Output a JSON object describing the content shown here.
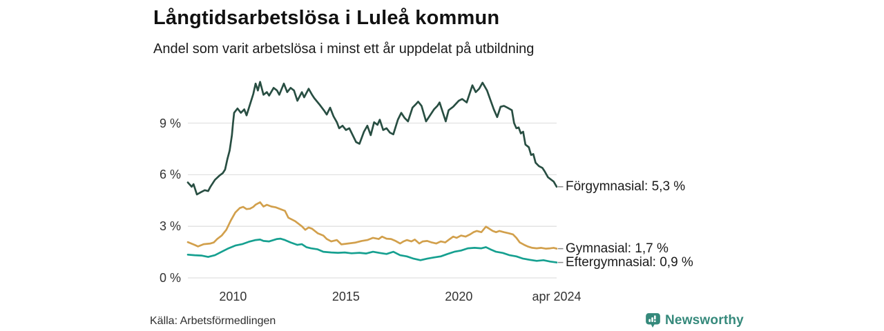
{
  "header": {
    "title": "Långtidsarbetslösa i Luleå kommun",
    "subtitle": "Andel som varit arbetslösa i minst ett år uppdelat på utbildning"
  },
  "chart_data": {
    "type": "line",
    "title": "Långtidsarbetslösa i Luleå kommun",
    "subtitle": "Andel som varit arbetslösa i minst ett år uppdelat på utbildning",
    "xlabel": "",
    "ylabel": "",
    "grid": true,
    "grid_color": "#e1e1e1",
    "legend_position": "end-of-line",
    "x_axis": {
      "range": [
        2008,
        2024.333
      ],
      "ticks": [
        {
          "x": 2010,
          "label": "2010"
        },
        {
          "x": 2015,
          "label": "2015"
        },
        {
          "x": 2020,
          "label": "2020"
        },
        {
          "x": 2024.333,
          "label": "apr 2024"
        }
      ]
    },
    "y_axis": {
      "range": [
        0,
        11.8
      ],
      "unit": "%",
      "ticks": [
        {
          "v": 0,
          "label": "0 %"
        },
        {
          "v": 3,
          "label": "3 %"
        },
        {
          "v": 6,
          "label": "6 %"
        },
        {
          "v": 9,
          "label": "9 %"
        }
      ]
    },
    "series": [
      {
        "name": "Förgymnasial",
        "color": "#284e42",
        "end_value": "5,3 %",
        "end_label": "Förgymnasial: 5,3 %",
        "points": [
          [
            2008.0,
            5.55
          ],
          [
            2008.17,
            5.3
          ],
          [
            2008.25,
            5.45
          ],
          [
            2008.4,
            4.85
          ],
          [
            2008.6,
            5.0
          ],
          [
            2008.75,
            5.1
          ],
          [
            2008.9,
            5.05
          ],
          [
            2009.0,
            5.3
          ],
          [
            2009.2,
            5.7
          ],
          [
            2009.4,
            5.95
          ],
          [
            2009.55,
            6.1
          ],
          [
            2009.65,
            6.3
          ],
          [
            2009.75,
            6.9
          ],
          [
            2009.85,
            7.4
          ],
          [
            2009.95,
            8.3
          ],
          [
            2010.0,
            9.0
          ],
          [
            2010.05,
            9.6
          ],
          [
            2010.2,
            9.85
          ],
          [
            2010.35,
            9.6
          ],
          [
            2010.5,
            9.8
          ],
          [
            2010.6,
            9.45
          ],
          [
            2010.9,
            10.7
          ],
          [
            2011.0,
            11.3
          ],
          [
            2011.1,
            10.9
          ],
          [
            2011.2,
            11.4
          ],
          [
            2011.35,
            10.65
          ],
          [
            2011.5,
            10.8
          ],
          [
            2011.6,
            10.6
          ],
          [
            2011.8,
            11.05
          ],
          [
            2011.95,
            10.9
          ],
          [
            2012.05,
            10.65
          ],
          [
            2012.25,
            11.3
          ],
          [
            2012.4,
            10.8
          ],
          [
            2012.55,
            11.05
          ],
          [
            2012.7,
            10.9
          ],
          [
            2012.85,
            10.3
          ],
          [
            2013.05,
            10.8
          ],
          [
            2013.15,
            10.5
          ],
          [
            2013.35,
            11.0
          ],
          [
            2013.5,
            10.65
          ],
          [
            2013.6,
            10.45
          ],
          [
            2013.85,
            10.05
          ],
          [
            2014.05,
            9.7
          ],
          [
            2014.15,
            9.5
          ],
          [
            2014.3,
            9.9
          ],
          [
            2014.45,
            9.4
          ],
          [
            2014.6,
            9.05
          ],
          [
            2014.7,
            8.7
          ],
          [
            2014.85,
            8.85
          ],
          [
            2015.0,
            8.6
          ],
          [
            2015.15,
            8.7
          ],
          [
            2015.3,
            8.3
          ],
          [
            2015.45,
            7.9
          ],
          [
            2015.6,
            7.8
          ],
          [
            2015.8,
            8.5
          ],
          [
            2015.95,
            8.85
          ],
          [
            2016.1,
            8.3
          ],
          [
            2016.25,
            9.05
          ],
          [
            2016.4,
            8.9
          ],
          [
            2016.5,
            9.2
          ],
          [
            2016.65,
            8.6
          ],
          [
            2016.8,
            8.7
          ],
          [
            2016.95,
            8.45
          ],
          [
            2017.1,
            8.35
          ],
          [
            2017.3,
            9.2
          ],
          [
            2017.45,
            9.6
          ],
          [
            2017.6,
            9.3
          ],
          [
            2017.75,
            9.1
          ],
          [
            2017.95,
            9.9
          ],
          [
            2018.1,
            10.1
          ],
          [
            2018.2,
            10.25
          ],
          [
            2018.35,
            10.0
          ],
          [
            2018.55,
            9.1
          ],
          [
            2018.7,
            9.4
          ],
          [
            2018.9,
            9.8
          ],
          [
            2019.05,
            10.0
          ],
          [
            2019.15,
            10.2
          ],
          [
            2019.42,
            9.1
          ],
          [
            2019.55,
            9.75
          ],
          [
            2019.75,
            9.95
          ],
          [
            2020.0,
            10.3
          ],
          [
            2020.15,
            10.4
          ],
          [
            2020.35,
            10.2
          ],
          [
            2020.6,
            11.2
          ],
          [
            2020.75,
            10.8
          ],
          [
            2020.9,
            11.0
          ],
          [
            2021.05,
            11.35
          ],
          [
            2021.25,
            10.9
          ],
          [
            2021.4,
            10.35
          ],
          [
            2021.55,
            9.8
          ],
          [
            2021.7,
            9.35
          ],
          [
            2021.85,
            9.95
          ],
          [
            2022.0,
            10.0
          ],
          [
            2022.15,
            9.9
          ],
          [
            2022.35,
            9.75
          ],
          [
            2022.45,
            9.0
          ],
          [
            2022.55,
            8.7
          ],
          [
            2022.65,
            8.75
          ],
          [
            2022.75,
            8.4
          ],
          [
            2022.85,
            8.5
          ],
          [
            2022.95,
            7.75
          ],
          [
            2023.1,
            7.6
          ],
          [
            2023.2,
            7.15
          ],
          [
            2023.3,
            7.2
          ],
          [
            2023.4,
            6.7
          ],
          [
            2023.55,
            6.5
          ],
          [
            2023.7,
            6.4
          ],
          [
            2023.8,
            6.2
          ],
          [
            2023.95,
            5.85
          ],
          [
            2024.1,
            5.7
          ],
          [
            2024.2,
            5.6
          ],
          [
            2024.333,
            5.3
          ]
        ]
      },
      {
        "name": "Gymnasial",
        "color": "#d2a04c",
        "end_value": "1,7 %",
        "end_label": "Gymnasial: 1,7 %",
        "points": [
          [
            2008.0,
            2.08
          ],
          [
            2008.3,
            1.92
          ],
          [
            2008.45,
            1.83
          ],
          [
            2008.7,
            1.96
          ],
          [
            2009.0,
            2.0
          ],
          [
            2009.15,
            2.06
          ],
          [
            2009.3,
            2.26
          ],
          [
            2009.5,
            2.46
          ],
          [
            2009.7,
            2.79
          ],
          [
            2009.9,
            3.33
          ],
          [
            2010.1,
            3.8
          ],
          [
            2010.3,
            4.06
          ],
          [
            2010.45,
            4.13
          ],
          [
            2010.6,
            4.0
          ],
          [
            2010.75,
            4.02
          ],
          [
            2010.9,
            4.13
          ],
          [
            2011.0,
            4.26
          ],
          [
            2011.2,
            4.4
          ],
          [
            2011.35,
            4.15
          ],
          [
            2011.5,
            4.25
          ],
          [
            2011.7,
            4.15
          ],
          [
            2011.9,
            4.1
          ],
          [
            2012.1,
            4.0
          ],
          [
            2012.3,
            3.9
          ],
          [
            2012.45,
            3.5
          ],
          [
            2012.75,
            3.3
          ],
          [
            2013.05,
            3.0
          ],
          [
            2013.2,
            2.8
          ],
          [
            2013.35,
            2.93
          ],
          [
            2013.5,
            2.86
          ],
          [
            2013.75,
            2.6
          ],
          [
            2014.0,
            2.46
          ],
          [
            2014.15,
            2.26
          ],
          [
            2014.35,
            2.12
          ],
          [
            2014.6,
            2.2
          ],
          [
            2014.8,
            1.95
          ],
          [
            2015.1,
            2.0
          ],
          [
            2015.4,
            2.05
          ],
          [
            2015.7,
            2.15
          ],
          [
            2015.95,
            2.2
          ],
          [
            2016.2,
            2.33
          ],
          [
            2016.45,
            2.26
          ],
          [
            2016.6,
            2.4
          ],
          [
            2016.8,
            2.28
          ],
          [
            2017.0,
            2.26
          ],
          [
            2017.2,
            2.15
          ],
          [
            2017.4,
            2.0
          ],
          [
            2017.55,
            2.12
          ],
          [
            2017.7,
            2.2
          ],
          [
            2017.9,
            2.12
          ],
          [
            2018.05,
            2.23
          ],
          [
            2018.25,
            2.0
          ],
          [
            2018.4,
            2.12
          ],
          [
            2018.6,
            2.15
          ],
          [
            2018.8,
            2.06
          ],
          [
            2019.0,
            2.0
          ],
          [
            2019.2,
            2.12
          ],
          [
            2019.4,
            2.06
          ],
          [
            2019.6,
            2.26
          ],
          [
            2019.75,
            2.4
          ],
          [
            2019.9,
            2.33
          ],
          [
            2020.1,
            2.46
          ],
          [
            2020.3,
            2.4
          ],
          [
            2020.5,
            2.53
          ],
          [
            2020.65,
            2.66
          ],
          [
            2020.8,
            2.73
          ],
          [
            2021.0,
            2.66
          ],
          [
            2021.2,
            2.98
          ],
          [
            2021.35,
            2.86
          ],
          [
            2021.5,
            2.73
          ],
          [
            2021.65,
            2.66
          ],
          [
            2021.8,
            2.73
          ],
          [
            2022.0,
            2.66
          ],
          [
            2022.2,
            2.6
          ],
          [
            2022.4,
            2.53
          ],
          [
            2022.55,
            2.33
          ],
          [
            2022.7,
            2.06
          ],
          [
            2022.9,
            1.92
          ],
          [
            2023.05,
            1.83
          ],
          [
            2023.25,
            1.75
          ],
          [
            2023.45,
            1.72
          ],
          [
            2023.65,
            1.75
          ],
          [
            2023.85,
            1.7
          ],
          [
            2024.05,
            1.72
          ],
          [
            2024.2,
            1.75
          ],
          [
            2024.333,
            1.7
          ]
        ]
      },
      {
        "name": "Eftergymnasial",
        "color": "#16a090",
        "end_value": "0,9 %",
        "end_label": "Eftergymnasial: 0,9 %",
        "points": [
          [
            2008.0,
            1.35
          ],
          [
            2008.3,
            1.32
          ],
          [
            2008.6,
            1.3
          ],
          [
            2008.9,
            1.22
          ],
          [
            2009.2,
            1.32
          ],
          [
            2009.5,
            1.52
          ],
          [
            2009.8,
            1.72
          ],
          [
            2010.1,
            1.88
          ],
          [
            2010.4,
            1.96
          ],
          [
            2010.7,
            2.1
          ],
          [
            2011.0,
            2.2
          ],
          [
            2011.2,
            2.23
          ],
          [
            2011.35,
            2.15
          ],
          [
            2011.6,
            2.12
          ],
          [
            2011.95,
            2.26
          ],
          [
            2012.1,
            2.28
          ],
          [
            2012.3,
            2.2
          ],
          [
            2012.55,
            2.06
          ],
          [
            2012.85,
            1.92
          ],
          [
            2013.05,
            1.96
          ],
          [
            2013.25,
            1.79
          ],
          [
            2013.45,
            1.72
          ],
          [
            2013.75,
            1.66
          ],
          [
            2014.0,
            1.52
          ],
          [
            2014.35,
            1.48
          ],
          [
            2014.65,
            1.46
          ],
          [
            2014.95,
            1.48
          ],
          [
            2015.25,
            1.43
          ],
          [
            2015.6,
            1.46
          ],
          [
            2015.9,
            1.42
          ],
          [
            2016.2,
            1.52
          ],
          [
            2016.5,
            1.45
          ],
          [
            2016.8,
            1.39
          ],
          [
            2017.1,
            1.52
          ],
          [
            2017.4,
            1.32
          ],
          [
            2017.7,
            1.25
          ],
          [
            2018.0,
            1.12
          ],
          [
            2018.3,
            1.03
          ],
          [
            2018.6,
            1.12
          ],
          [
            2018.9,
            1.19
          ],
          [
            2019.2,
            1.25
          ],
          [
            2019.5,
            1.39
          ],
          [
            2019.8,
            1.52
          ],
          [
            2020.1,
            1.59
          ],
          [
            2020.4,
            1.72
          ],
          [
            2020.7,
            1.75
          ],
          [
            2021.0,
            1.72
          ],
          [
            2021.2,
            1.79
          ],
          [
            2021.4,
            1.66
          ],
          [
            2021.65,
            1.52
          ],
          [
            2021.95,
            1.45
          ],
          [
            2022.25,
            1.32
          ],
          [
            2022.55,
            1.25
          ],
          [
            2022.85,
            1.12
          ],
          [
            2023.15,
            1.05
          ],
          [
            2023.45,
            0.99
          ],
          [
            2023.75,
            1.03
          ],
          [
            2024.05,
            0.95
          ],
          [
            2024.333,
            0.9
          ]
        ]
      }
    ]
  },
  "footer": {
    "source": "Källa: Arbetsförmedlingen",
    "brand": "Newsworthy",
    "brand_color": "#35897B"
  }
}
